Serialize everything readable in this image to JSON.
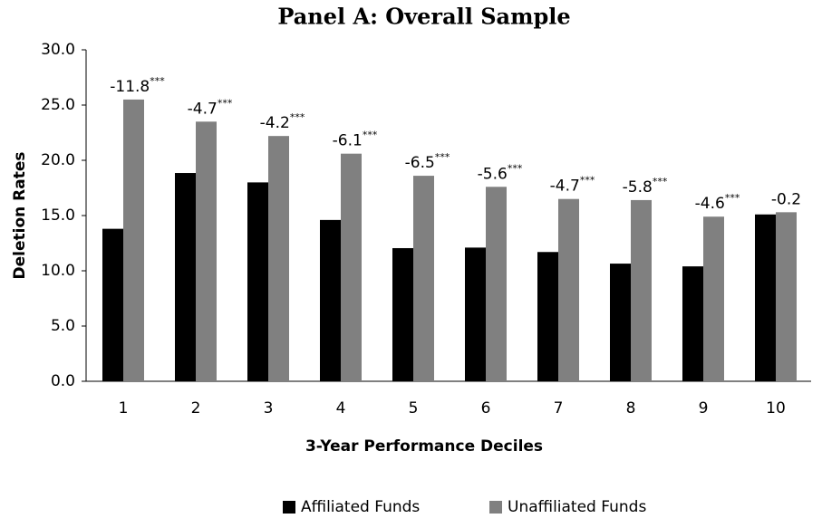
{
  "chart_data": {
    "type": "bar",
    "title": "Panel A: Overall Sample",
    "x_label": "3-Year Performance Deciles",
    "y_label": "Deletion Rates",
    "categories": [
      "1",
      "2",
      "3",
      "4",
      "5",
      "6",
      "7",
      "8",
      "9",
      "10"
    ],
    "series": [
      {
        "name": "Affiliated Funds",
        "color": "#000000",
        "values": [
          13.8,
          18.85,
          18.0,
          14.6,
          12.05,
          12.1,
          11.7,
          10.65,
          10.4,
          15.1
        ]
      },
      {
        "name": "Unaffiliated Funds",
        "color": "#808080",
        "values": [
          25.5,
          23.5,
          22.2,
          20.6,
          18.6,
          17.6,
          16.5,
          16.4,
          14.9,
          15.3
        ]
      }
    ],
    "annotations": [
      {
        "text": "-11.8",
        "sup": "***"
      },
      {
        "text": "-4.7",
        "sup": "***"
      },
      {
        "text": "-4.2",
        "sup": "***"
      },
      {
        "text": "-6.1",
        "sup": "***"
      },
      {
        "text": "-6.5",
        "sup": "***"
      },
      {
        "text": "-5.6",
        "sup": "***"
      },
      {
        "text": "-4.7",
        "sup": "***"
      },
      {
        "text": "-5.8",
        "sup": "***"
      },
      {
        "text": "-4.6",
        "sup": "***"
      },
      {
        "text": "-0.2"
      }
    ],
    "ylim": [
      0,
      30
    ],
    "yticks": [
      {
        "value": 0,
        "label": "0.0"
      },
      {
        "value": 5,
        "label": "5.0"
      },
      {
        "value": 10,
        "label": "10.0"
      },
      {
        "value": 15,
        "label": "15.0"
      },
      {
        "value": 20,
        "label": "20.0"
      },
      {
        "value": 25,
        "label": "25.0"
      },
      {
        "value": 30,
        "label": "30.0"
      }
    ],
    "grid": false,
    "legend": "bottom"
  }
}
